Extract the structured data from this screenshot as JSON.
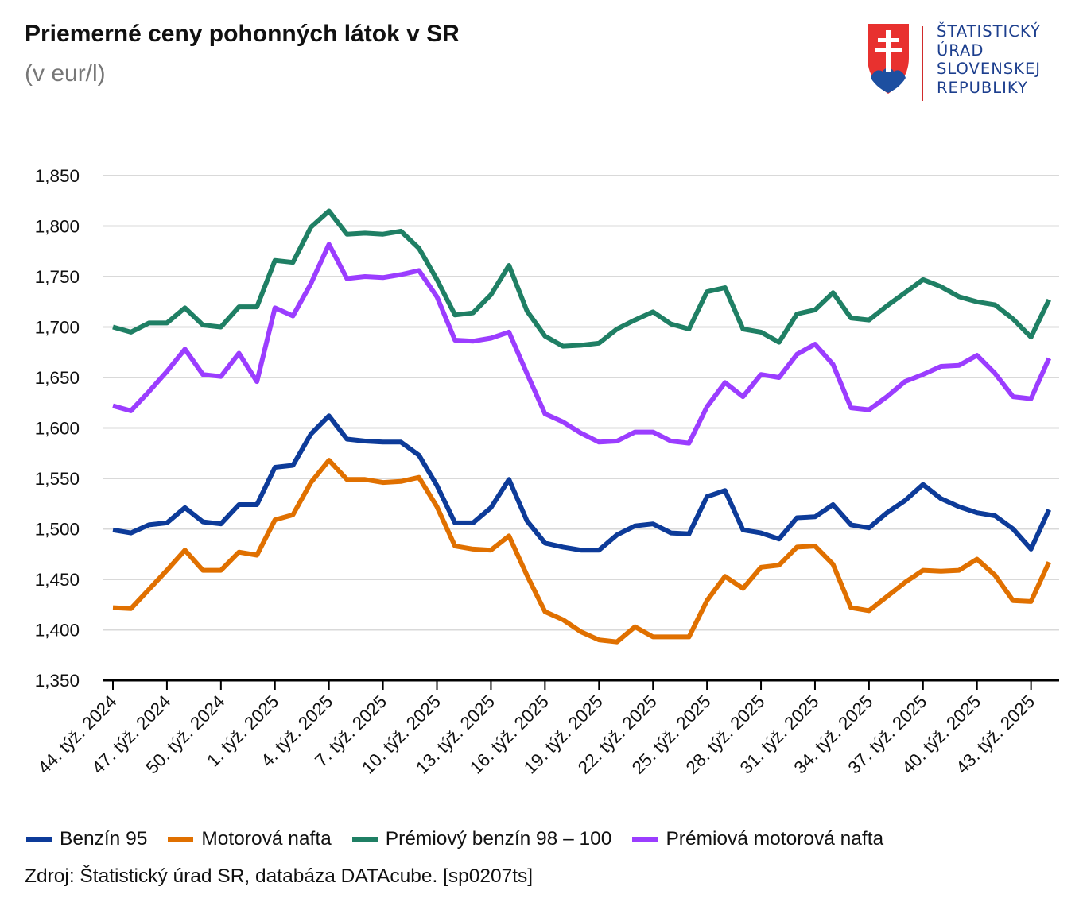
{
  "header": {
    "title": "Priemerné ceny pohonných látok v SR",
    "subtitle": "(v eur/l)"
  },
  "logo": {
    "lines": [
      "ŠTATISTICKÝ",
      "ÚRAD",
      "SLOVENSKEJ",
      "REPUBLIKY"
    ],
    "colors": {
      "text": "#1d3f8e",
      "divider": "#d12b2b",
      "shield_red": "#e8312f",
      "shield_blue": "#1d4fa0"
    }
  },
  "source": "Zdroj: Štatistický úrad SR, databáza DATAcube. [sp0207ts]",
  "chart_data": {
    "type": "line",
    "title": "Priemerné ceny pohonných látok v SR",
    "subtitle": "(v eur/l)",
    "ylim": [
      1.35,
      1.85
    ],
    "yticks": [
      "1,350",
      "1,400",
      "1,450",
      "1,500",
      "1,550",
      "1,600",
      "1,650",
      "1,700",
      "1,750",
      "1,800",
      "1,850"
    ],
    "grid": true,
    "legend_position": "bottom",
    "x_tick_labels": [
      "44. týž. 2024",
      "47. týž. 2024",
      "50. týž. 2024",
      "1. týž. 2025",
      "4. týž. 2025",
      "7. týž. 2025",
      "10. týž. 2025",
      "13. týž. 2025",
      "16. týž. 2025",
      "19. týž. 2025",
      "22. týž. 2025",
      "25. týž. 2025",
      "28. týž. 2025",
      "31. týž. 2025",
      "34. týž. 2025",
      "37. týž. 2025",
      "40. týž. 2025",
      "43. týž. 2025"
    ],
    "n_points": 53,
    "series": [
      {
        "name": "Benzín 95",
        "color": "#0d3b99",
        "values": [
          1.499,
          1.496,
          1.504,
          1.506,
          1.521,
          1.507,
          1.505,
          1.524,
          1.524,
          1.561,
          1.563,
          1.594,
          1.612,
          1.589,
          1.587,
          1.586,
          1.586,
          1.573,
          1.543,
          1.506,
          1.506,
          1.521,
          1.549,
          1.508,
          1.486,
          1.482,
          1.479,
          1.479,
          1.494,
          1.503,
          1.505,
          1.496,
          1.495,
          1.532,
          1.538,
          1.499,
          1.496,
          1.49,
          1.511,
          1.512,
          1.524,
          1.504,
          1.501,
          1.516,
          1.528,
          1.544,
          1.53,
          1.522,
          1.516,
          1.513,
          1.5,
          1.48,
          1.519
        ]
      },
      {
        "name": "Motorová nafta",
        "color": "#e07000",
        "values": [
          1.422,
          1.421,
          1.44,
          1.459,
          1.479,
          1.459,
          1.459,
          1.477,
          1.474,
          1.509,
          1.514,
          1.546,
          1.568,
          1.549,
          1.549,
          1.546,
          1.547,
          1.551,
          1.522,
          1.483,
          1.48,
          1.479,
          1.493,
          1.454,
          1.418,
          1.41,
          1.398,
          1.39,
          1.388,
          1.403,
          1.393,
          1.393,
          1.393,
          1.429,
          1.453,
          1.441,
          1.462,
          1.464,
          1.482,
          1.483,
          1.465,
          1.422,
          1.419,
          1.433,
          1.447,
          1.459,
          1.458,
          1.459,
          1.47,
          1.454,
          1.429,
          1.428,
          1.467
        ]
      },
      {
        "name": "Prémiový benzín 98 – 100",
        "color": "#1f7f64",
        "values": [
          1.7,
          1.695,
          1.704,
          1.704,
          1.719,
          1.702,
          1.7,
          1.72,
          1.72,
          1.766,
          1.764,
          1.799,
          1.815,
          1.792,
          1.793,
          1.792,
          1.795,
          1.778,
          1.747,
          1.712,
          1.714,
          1.732,
          1.761,
          1.716,
          1.691,
          1.681,
          1.682,
          1.684,
          1.698,
          1.707,
          1.715,
          1.703,
          1.698,
          1.735,
          1.739,
          1.698,
          1.695,
          1.685,
          1.713,
          1.717,
          1.734,
          1.709,
          1.707,
          1.721,
          1.734,
          1.747,
          1.74,
          1.73,
          1.725,
          1.722,
          1.708,
          1.69,
          1.727
        ]
      },
      {
        "name": "Prémiová motorová nafta",
        "color": "#9b3dff",
        "values": [
          1.622,
          1.617,
          1.636,
          1.656,
          1.678,
          1.653,
          1.651,
          1.674,
          1.646,
          1.719,
          1.711,
          1.743,
          1.782,
          1.748,
          1.75,
          1.749,
          1.752,
          1.756,
          1.73,
          1.687,
          1.686,
          1.689,
          1.695,
          1.654,
          1.614,
          1.606,
          1.595,
          1.586,
          1.587,
          1.596,
          1.596,
          1.587,
          1.585,
          1.621,
          1.645,
          1.631,
          1.653,
          1.65,
          1.673,
          1.683,
          1.663,
          1.62,
          1.618,
          1.631,
          1.646,
          1.653,
          1.661,
          1.662,
          1.672,
          1.654,
          1.631,
          1.629,
          1.669
        ]
      }
    ]
  }
}
